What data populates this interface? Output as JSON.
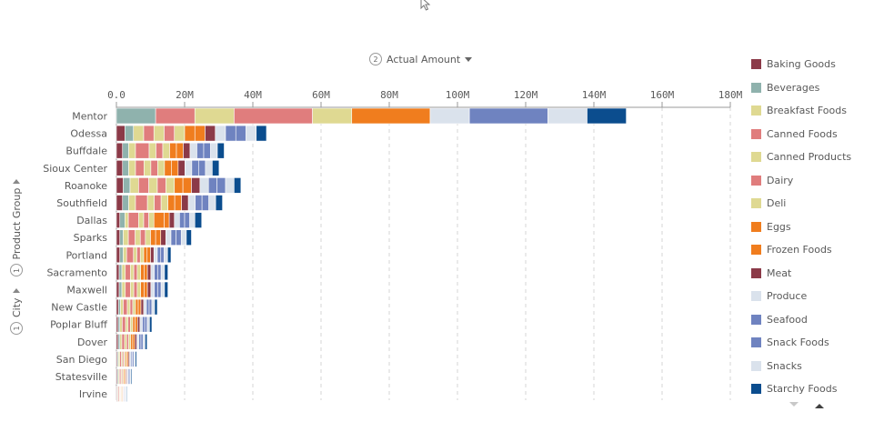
{
  "measure": {
    "number": "2",
    "label": "Actual Amount"
  },
  "dimensions": {
    "first": {
      "number": "1",
      "label": "City"
    },
    "second": {
      "number": "1",
      "label": "Product Group"
    }
  },
  "chart_data": {
    "type": "bar",
    "orientation": "horizontal",
    "stacked": true,
    "grid": true,
    "legend_position": "right",
    "xlim": [
      0,
      180000000
    ],
    "xticks": [
      "0.0",
      "20M",
      "40M",
      "60M",
      "80M",
      "100M",
      "120M",
      "140M",
      "160M",
      "180M"
    ],
    "categories": [
      "Mentor",
      "Odessa",
      "Buffdale",
      "Sioux Center",
      "Roanoke",
      "Southfield",
      "Dallas",
      "Sparks",
      "Portland",
      "Sacramento",
      "Maxwell",
      "New Castle",
      "Poplar Bluff",
      "Dover",
      "San Diego",
      "Statesville",
      "Irvine"
    ],
    "series": [
      {
        "name": "Baking Goods",
        "color": "#8b3a48",
        "values": [
          0,
          2.5,
          1.8,
          1.8,
          2.0,
          1.8,
          1.0,
          1.0,
          1.0,
          0.8,
          0.8,
          0.6,
          0.5,
          0.5,
          0.3,
          0.3,
          0.2
        ]
      },
      {
        "name": "Beverages",
        "color": "#8fb2ad",
        "values": [
          11.5,
          2.5,
          1.8,
          1.8,
          2.0,
          1.8,
          1.5,
          1.0,
          1.0,
          0.8,
          0.8,
          0.6,
          0.5,
          0.5,
          0.3,
          0.3,
          0.2
        ]
      },
      {
        "name": "Breakfast Foods",
        "color": "#dfd992",
        "values": [
          0,
          3.0,
          2.0,
          2.0,
          2.5,
          2.0,
          1.0,
          1.5,
          1.0,
          1.0,
          1.0,
          0.8,
          0.7,
          0.6,
          0.4,
          0.3,
          0.2
        ]
      },
      {
        "name": "Canned Foods",
        "color": "#e07d7d",
        "values": [
          11.5,
          3.0,
          4.0,
          2.5,
          3.0,
          3.5,
          3.0,
          2.0,
          2.0,
          1.5,
          1.5,
          1.2,
          1.0,
          0.8,
          0.5,
          0.4,
          0.3
        ]
      },
      {
        "name": "Canned Products",
        "color": "#dfd992",
        "values": [
          11.5,
          3.0,
          2.0,
          2.0,
          2.5,
          2.0,
          1.5,
          1.5,
          1.0,
          1.0,
          1.0,
          0.8,
          0.7,
          0.6,
          0.4,
          0.3,
          0.2
        ]
      },
      {
        "name": "Dairy",
        "color": "#e07d7d",
        "values": [
          23,
          3.0,
          2.0,
          2.0,
          2.5,
          2.0,
          1.5,
          1.5,
          1.0,
          1.0,
          1.0,
          0.8,
          0.7,
          0.6,
          0.4,
          0.3,
          0.2
        ]
      },
      {
        "name": "Deli",
        "color": "#dfd992",
        "values": [
          11.5,
          3.0,
          2.0,
          2.0,
          2.5,
          2.0,
          1.5,
          1.5,
          1.0,
          1.0,
          1.0,
          0.8,
          0.7,
          0.6,
          0.4,
          0.3,
          0.2
        ]
      },
      {
        "name": "Eggs",
        "color": "#f07d1e",
        "values": [
          0,
          3.0,
          2.0,
          2.0,
          2.5,
          2.0,
          3.0,
          1.5,
          1.0,
          1.0,
          1.0,
          0.8,
          0.7,
          0.6,
          0.4,
          0.3,
          0.2
        ]
      },
      {
        "name": "Frozen Foods",
        "color": "#f07d1e",
        "values": [
          23,
          3.0,
          2.0,
          2.0,
          2.5,
          2.0,
          1.5,
          1.5,
          1.0,
          1.0,
          1.0,
          0.8,
          0.7,
          0.6,
          0.4,
          0.3,
          0.2
        ]
      },
      {
        "name": "Meat",
        "color": "#8b3a48",
        "values": [
          0,
          3.0,
          2.0,
          2.0,
          2.5,
          2.0,
          1.5,
          1.5,
          1.0,
          1.0,
          1.0,
          0.8,
          0.7,
          0.6,
          0.4,
          0.3,
          0.2
        ]
      },
      {
        "name": "Produce",
        "color": "#dae2ec",
        "values": [
          11.5,
          3.0,
          2.0,
          2.0,
          2.5,
          2.0,
          1.5,
          1.5,
          1.0,
          1.0,
          1.0,
          0.8,
          0.7,
          0.6,
          0.4,
          0.3,
          0.2
        ]
      },
      {
        "name": "Seafood",
        "color": "#6f83c0",
        "values": [
          23,
          3.0,
          2.0,
          2.0,
          2.5,
          2.0,
          1.5,
          1.5,
          1.0,
          1.0,
          1.0,
          0.8,
          0.7,
          0.6,
          0.4,
          0.3,
          0.2
        ]
      },
      {
        "name": "Snack Foods",
        "color": "#6f83c0",
        "values": [
          0,
          3.0,
          2.0,
          2.0,
          2.5,
          2.0,
          1.5,
          1.5,
          1.0,
          1.0,
          1.0,
          0.8,
          0.7,
          0.6,
          0.4,
          0.3,
          0.2
        ]
      },
      {
        "name": "Snacks",
        "color": "#dae2ec",
        "values": [
          11.5,
          3.0,
          2.0,
          2.0,
          2.5,
          2.0,
          1.5,
          1.5,
          1.0,
          1.0,
          1.0,
          0.8,
          0.7,
          0.6,
          0.4,
          0.3,
          0.2
        ]
      },
      {
        "name": "Starchy Foods",
        "color": "#0b4d8e",
        "values": [
          11.5,
          3.0,
          2.0,
          2.0,
          2.0,
          2.0,
          2.0,
          1.5,
          1.0,
          1.0,
          1.0,
          0.8,
          0.7,
          0.6,
          0.4,
          0.3,
          0.2
        ]
      }
    ]
  }
}
